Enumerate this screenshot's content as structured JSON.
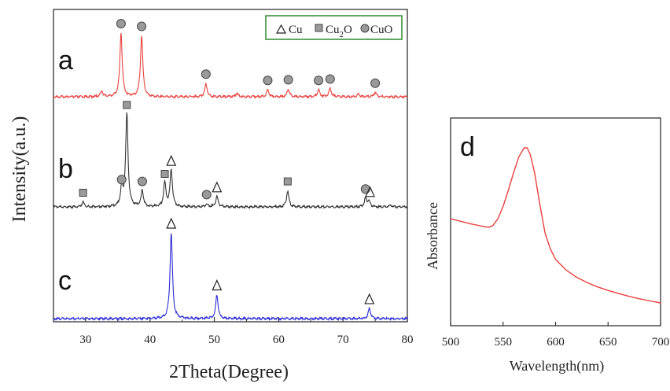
{
  "chart_data": [
    {
      "type": "line",
      "xlabel": "2Theta(Degree)",
      "ylabel": "Intensity(a.u.)",
      "xlim": [
        25,
        80
      ],
      "x_ticks": [
        "30",
        "40",
        "50",
        "60",
        "70",
        "80"
      ],
      "legend": {
        "position": "top-right",
        "entries": [
          {
            "symbol": "triangle",
            "label": "Cu"
          },
          {
            "symbol": "square",
            "label": "Cu",
            "subscript": "2",
            "suffix": "O"
          },
          {
            "symbol": "circle",
            "label": "CuO"
          }
        ]
      },
      "series": [
        {
          "name": "a",
          "color": "#e8413d",
          "peaks": [
            [
              32.5,
              0.08
            ],
            [
              35.5,
              0.92
            ],
            [
              38.7,
              0.88
            ],
            [
              48.7,
              0.19
            ],
            [
              53.5,
              0.05
            ],
            [
              58.3,
              0.1
            ],
            [
              61.5,
              0.11
            ],
            [
              66.2,
              0.1
            ],
            [
              68.0,
              0.12
            ],
            [
              72.4,
              0.04
            ],
            [
              75.0,
              0.06
            ]
          ],
          "markers": [
            {
              "x": 35.5,
              "symbol": "circle"
            },
            {
              "x": 38.7,
              "symbol": "circle"
            },
            {
              "x": 48.7,
              "symbol": "circle"
            },
            {
              "x": 58.3,
              "symbol": "circle"
            },
            {
              "x": 61.5,
              "symbol": "circle"
            },
            {
              "x": 66.2,
              "symbol": "circle"
            },
            {
              "x": 68.0,
              "symbol": "circle"
            },
            {
              "x": 75.0,
              "symbol": "circle"
            }
          ]
        },
        {
          "name": "b",
          "color": "#333333",
          "peaks": [
            [
              29.6,
              0.05
            ],
            [
              35.6,
              0.19
            ],
            [
              36.4,
              0.98
            ],
            [
              38.8,
              0.17
            ],
            [
              42.3,
              0.25
            ],
            [
              43.3,
              0.39
            ],
            [
              48.8,
              0.03
            ],
            [
              50.4,
              0.11
            ],
            [
              61.4,
              0.17
            ],
            [
              73.5,
              0.09
            ],
            [
              74.0,
              0.06
            ],
            [
              77.4,
              0.02
            ]
          ],
          "markers": [
            {
              "x": 29.6,
              "symbol": "square"
            },
            {
              "x": 35.6,
              "symbol": "circle"
            },
            {
              "x": 36.4,
              "symbol": "square"
            },
            {
              "x": 38.8,
              "symbol": "circle"
            },
            {
              "x": 42.3,
              "symbol": "square"
            },
            {
              "x": 43.3,
              "symbol": "triangle"
            },
            {
              "x": 48.8,
              "symbol": "circle"
            },
            {
              "x": 50.4,
              "symbol": "triangle"
            },
            {
              "x": 61.4,
              "symbol": "square"
            },
            {
              "x": 73.5,
              "symbol": "circle"
            },
            {
              "x": 74.2,
              "symbol": "triangle"
            }
          ]
        },
        {
          "name": "c",
          "color": "#2b2bd6",
          "peaks": [
            [
              43.3,
              1.0
            ],
            [
              50.4,
              0.28
            ],
            [
              74.1,
              0.12
            ]
          ],
          "markers": [
            {
              "x": 43.3,
              "symbol": "triangle"
            },
            {
              "x": 50.4,
              "symbol": "triangle"
            },
            {
              "x": 74.1,
              "symbol": "triangle"
            }
          ]
        }
      ]
    },
    {
      "type": "line",
      "panel_label": "d",
      "xlabel": "Wavelength(nm)",
      "ylabel": "Absorbance",
      "xlim": [
        500,
        700
      ],
      "x_ticks": [
        "500",
        "550",
        "600",
        "650",
        "700"
      ],
      "series": [
        {
          "color": "#e8413d",
          "x": [
            500,
            510,
            520,
            530,
            536,
            540,
            545,
            550,
            555,
            560,
            565,
            570,
            573,
            576,
            580,
            585,
            590,
            595,
            600,
            610,
            620,
            630,
            640,
            650,
            660,
            670,
            680,
            690,
            700
          ],
          "y": [
            0.6,
            0.585,
            0.57,
            0.558,
            0.552,
            0.56,
            0.6,
            0.67,
            0.76,
            0.86,
            0.95,
            1.0,
            1.0,
            0.96,
            0.86,
            0.68,
            0.52,
            0.43,
            0.37,
            0.31,
            0.27,
            0.24,
            0.215,
            0.195,
            0.178,
            0.162,
            0.148,
            0.136,
            0.125
          ]
        }
      ]
    }
  ]
}
